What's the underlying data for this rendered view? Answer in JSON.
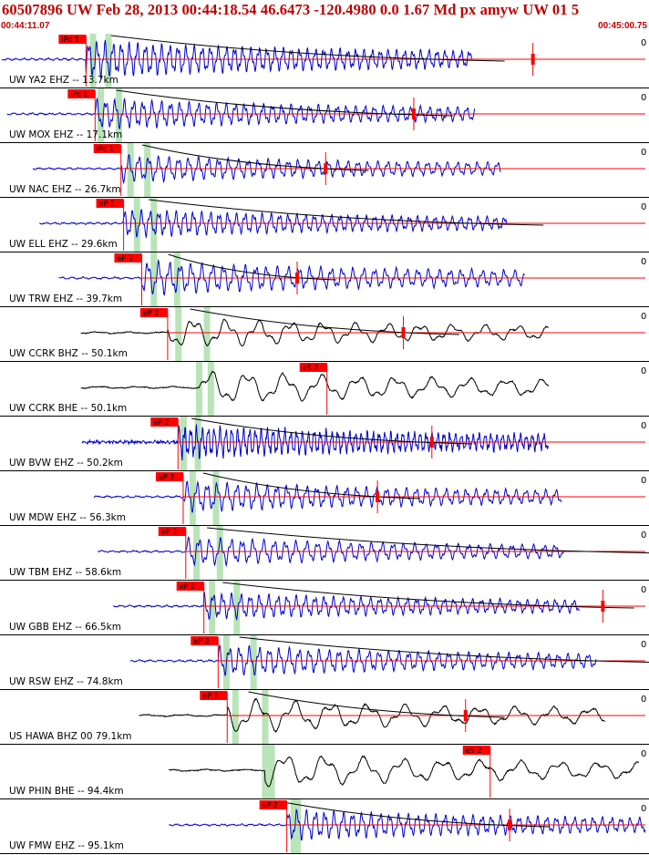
{
  "header": {
    "title": "60507896 UW Feb 28, 2013 00:44:18.54   46.6473 -120.4980  0.0 1.67 Md px amyw UW 01   5",
    "time_start": "00:44:11.07",
    "time_end": "00:45:00.75"
  },
  "colors": {
    "header_text": "#c00000",
    "vertical_trace": "#0000cc",
    "horizontal_trace": "#000000",
    "pick": "#ff0000",
    "theoretical_window": "#b8e4b8",
    "separator": "#000000",
    "coda_curve": "#000000"
  },
  "chart_data": {
    "type": "seismogram",
    "x_range": [
      "00:44:11.07",
      "00:45:00.75"
    ],
    "x_duration_s": 49.68,
    "scale_label": "0",
    "traces": [
      {
        "label": "UW YA2 EHZ -- 13.7km",
        "component": "Z",
        "pick": "iPd 1",
        "pick_s": 6.5,
        "theo_s": [
          7.0,
          8.2
        ],
        "signal_start_s": 0.0,
        "signal_end_s": 36.3,
        "amplitude": 0.55,
        "freq": 1.6,
        "coda_end_s": 36.0,
        "end_marker_s": 41.0
      },
      {
        "label": "UW MOX EHZ -- 17.1km",
        "component": "Z",
        "pick": "iPc 1",
        "pick_s": 7.2,
        "theo_s": [
          7.6,
          9.0
        ],
        "signal_start_s": 0.4,
        "signal_end_s": 36.5,
        "amplitude": 0.45,
        "freq": 1.4,
        "coda_end_s": 32.0,
        "end_marker_s": 31.8
      },
      {
        "label": "UW NAC EHZ -- 26.7km",
        "component": "Z",
        "pick": "iPc 1",
        "pick_s": 9.2,
        "theo_s": [
          9.9,
          11.2
        ],
        "signal_start_s": 2.4,
        "signal_end_s": 38.5,
        "amplitude": 0.4,
        "freq": 1.3,
        "coda_end_s": 25.5,
        "end_marker_s": 25.0
      },
      {
        "label": "UW ELL EHZ -- 29.6km",
        "component": "Z",
        "pick": "eP 2",
        "pick_s": 9.4,
        "theo_s": [
          10.4,
          11.7
        ],
        "signal_start_s": 2.9,
        "signal_end_s": 39.0,
        "amplitude": 0.42,
        "freq": 1.5,
        "coda_end_s": 39.0,
        "end_marker_s": null
      },
      {
        "label": "UW TRW EHZ -- 39.7km",
        "component": "Z",
        "pick": "eP 2",
        "pick_s": 10.8,
        "theo_s": [
          11.7,
          13.5
        ],
        "signal_start_s": 4.4,
        "signal_end_s": 40.4,
        "amplitude": 0.5,
        "freq": 1.2,
        "coda_end_s": 23.0,
        "end_marker_s": 22.8
      },
      {
        "label": "UW CCRK BHZ -- 50.1km",
        "component": "Z-H",
        "pick": "eP 2",
        "pick_s": 12.8,
        "theo_s": [
          13.6,
          15.8
        ],
        "signal_start_s": 6.1,
        "signal_end_s": 42.2,
        "amplitude": 0.45,
        "freq": 0.4,
        "coda_end_s": 32.5,
        "end_marker_s": 31.0
      },
      {
        "label": "UW CCRK BHE -- 50.1km",
        "component": "H",
        "pick": "eS 2",
        "pick_s": 25.1,
        "theo_s": [
          15.2,
          16.1
        ],
        "signal_start_s": 6.1,
        "signal_end_s": 42.2,
        "amplitude": 0.5,
        "freq": 0.35,
        "coda_end_s": null,
        "end_marker_s": null
      },
      {
        "label": "UW BVW EHZ -- 50.2km",
        "component": "Z",
        "pick": "eP 2",
        "pick_s": 13.6,
        "theo_s": [
          14.0,
          15.1
        ],
        "signal_start_s": 6.2,
        "signal_end_s": 42.2,
        "amplitude": 0.5,
        "freq": 2.2,
        "coda_end_s": 33.5,
        "end_marker_s": 33.2
      },
      {
        "label": "UW MDW EHZ -- 56.3km",
        "component": "Z",
        "pick": "eP 2",
        "pick_s": 14.0,
        "theo_s": [
          14.7,
          16.5
        ],
        "signal_start_s": 7.1,
        "signal_end_s": 43.2,
        "amplitude": 0.45,
        "freq": 1.3,
        "coda_end_s": 29.5,
        "end_marker_s": 29.0
      },
      {
        "label": "UW TBM EHZ -- 58.6km",
        "component": "Z",
        "pick": "eP 2",
        "pick_s": 14.2,
        "theo_s": [
          15.0,
          16.8
        ],
        "signal_start_s": 7.4,
        "signal_end_s": 43.4,
        "amplitude": 0.42,
        "freq": 1.2,
        "coda_end_s": 49.0,
        "end_marker_s": null
      },
      {
        "label": "UW GBB EHZ -- 66.5km",
        "component": "Z",
        "pick": "eP 2",
        "pick_s": 15.6,
        "theo_s": [
          16.2,
          18.1
        ],
        "signal_start_s": 8.6,
        "signal_end_s": 44.6,
        "amplitude": 0.4,
        "freq": 1.4,
        "coda_end_s": 46.0,
        "end_marker_s": 46.4
      },
      {
        "label": "UW RSW EHZ -- 74.8km",
        "component": "Z",
        "pick": "eP 2",
        "pick_s": 16.7,
        "theo_s": [
          17.3,
          19.4
        ],
        "signal_start_s": 9.9,
        "signal_end_s": 45.9,
        "amplitude": 0.45,
        "freq": 1.3,
        "coda_end_s": 49.2,
        "end_marker_s": null
      },
      {
        "label": "US HAWA BHZ 00 79.1km",
        "component": "H",
        "pick": "eP 2",
        "pick_s": 17.4,
        "theo_s": [
          18.0,
          20.3
        ],
        "signal_start_s": 10.6,
        "signal_end_s": 46.6,
        "amplitude": 0.5,
        "freq": 0.35,
        "coda_end_s": 36.0,
        "end_marker_s": 35.8
      },
      {
        "label": "UW PHIN BHE -- 94.4km",
        "component": "H",
        "pick": "eS 2",
        "pick_s": 37.7,
        "theo_s": [
          20.3,
          20.8
        ],
        "signal_start_s": 12.9,
        "signal_end_s": 49.2,
        "amplitude": 0.5,
        "freq": 0.33,
        "coda_end_s": null,
        "end_marker_s": null
      },
      {
        "label": "UW FMW EHZ -- 95.1km",
        "component": "Z",
        "pick": "eP 2",
        "pick_s": 22.0,
        "theo_s": [
          22.5,
          22.8
        ],
        "signal_start_s": 12.9,
        "signal_end_s": 49.7,
        "amplitude": 0.45,
        "freq": 1.4,
        "coda_end_s": 39.5,
        "end_marker_s": 39.2
      }
    ]
  }
}
